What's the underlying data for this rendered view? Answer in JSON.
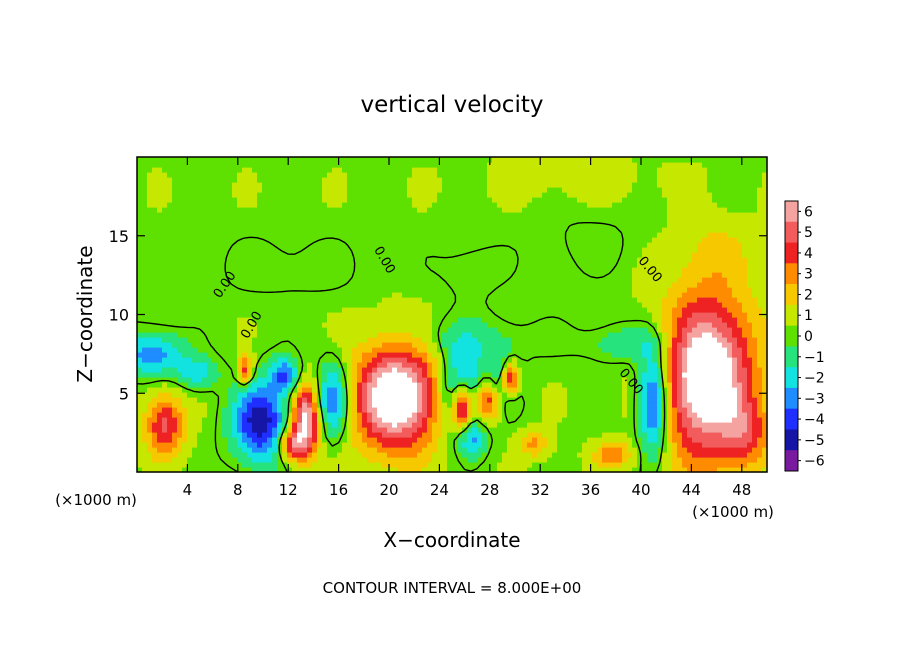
{
  "chart_data": {
    "type": "heatmap",
    "title": "vertical velocity",
    "xlabel": "X−coordinate",
    "ylabel": "Z−coordinate",
    "x_unit_left": "(×1000 m)",
    "x_unit_right": "(×1000 m)",
    "footer": "CONTOUR INTERVAL = 8.000E+00",
    "xlim": [
      0,
      50
    ],
    "ylim": [
      0,
      20
    ],
    "x_ticks": [
      4,
      8,
      12,
      16,
      20,
      24,
      28,
      32,
      36,
      40,
      44,
      48
    ],
    "y_ticks": [
      5,
      10,
      15
    ],
    "contour_labels": [
      "0.00",
      "0.00",
      "0.00",
      "0.00",
      "0.00"
    ],
    "colorbar": {
      "levels": [
        6,
        5,
        4,
        3,
        2,
        1,
        0,
        -1,
        -2,
        -3,
        -4,
        -5,
        -6
      ],
      "labels": [
        "6",
        "5",
        "4",
        "3",
        "2",
        "1",
        "0",
        "−1",
        "−2",
        "−3",
        "−4",
        "−5",
        "−6"
      ],
      "colors": [
        "#f4a3a0",
        "#f25c5c",
        "#ee2222",
        "#ff8c00",
        "#f5c800",
        "#c6e800",
        "#5ee000",
        "#26e37e",
        "#12e2e0",
        "#1f8cff",
        "#1e2fff",
        "#1515a6",
        "#7a1a9e"
      ],
      "above_max_color": "#ffffff"
    },
    "features": [
      {
        "x": 2.2,
        "z": 3.0,
        "rx": 1.5,
        "rz": 2.0,
        "w": 4.5
      },
      {
        "x": 1.2,
        "z": 7.5,
        "rx": 2.5,
        "rz": 1.4,
        "w": -3.5
      },
      {
        "x": 4.8,
        "z": 6.3,
        "rx": 1.6,
        "rz": 1.0,
        "w": -2.5
      },
      {
        "x": 8.6,
        "z": 6.5,
        "rx": 0.6,
        "rz": 1.0,
        "w": 4.0
      },
      {
        "x": 9.8,
        "z": 3.2,
        "rx": 2.2,
        "rz": 2.5,
        "w": -5.5
      },
      {
        "x": 11.8,
        "z": 6.2,
        "rx": 1.2,
        "rz": 1.1,
        "w": -3.8
      },
      {
        "x": 13.4,
        "z": 3.3,
        "rx": 1.1,
        "rz": 2.3,
        "w": 6.8
      },
      {
        "x": 12.2,
        "z": 1.8,
        "rx": 1.0,
        "rz": 1.0,
        "w": 4.5
      },
      {
        "x": 15.6,
        "z": 4.6,
        "rx": 1.4,
        "rz": 2.4,
        "w": -4.3
      },
      {
        "x": 20.6,
        "z": 4.8,
        "rx": 3.5,
        "rz": 3.4,
        "w": 7.8
      },
      {
        "x": 25.8,
        "z": 5.0,
        "rx": 1.8,
        "rz": 2.6,
        "w": -4.8
      },
      {
        "x": 25.8,
        "z": 4.2,
        "rx": 0.8,
        "rz": 1.5,
        "w": 7.0
      },
      {
        "x": 27.8,
        "z": 4.6,
        "rx": 1.2,
        "rz": 1.3,
        "w": 5.0
      },
      {
        "x": 29.2,
        "z": 5.6,
        "rx": 1.1,
        "rz": 1.7,
        "w": -3.5
      },
      {
        "x": 29.6,
        "z": 5.9,
        "rx": 0.7,
        "rz": 1.1,
        "w": 6.8
      },
      {
        "x": 26.6,
        "z": 2.0,
        "rx": 1.0,
        "rz": 1.0,
        "w": -2.5
      },
      {
        "x": 31.5,
        "z": 1.8,
        "rx": 1.2,
        "rz": 0.8,
        "w": 2.5
      },
      {
        "x": 37.8,
        "z": 1.1,
        "rx": 1.5,
        "rz": 0.8,
        "w": 3.0
      },
      {
        "x": 41.0,
        "z": 4.6,
        "rx": 1.2,
        "rz": 3.4,
        "w": -5.5
      },
      {
        "x": 45.3,
        "z": 6.0,
        "rx": 3.6,
        "rz": 5.2,
        "w": 8.0
      },
      {
        "x": 48.5,
        "z": 2.4,
        "rx": 1.8,
        "rz": 2.0,
        "w": 2.5
      },
      {
        "x": 39.0,
        "z": 8.2,
        "rx": 3.5,
        "rz": 1.2,
        "w": -1.6
      },
      {
        "x": 26.0,
        "z": 8.4,
        "rx": 6.0,
        "rz": 1.5,
        "w": -1.3
      },
      {
        "x": 46.0,
        "z": 14.2,
        "rx": 3.0,
        "rz": 2.0,
        "w": 1.0
      },
      {
        "x": 12.0,
        "z": 13.0,
        "rx": 6.0,
        "rz": 2.0,
        "w": -0.7
      },
      {
        "x": 36.0,
        "z": 14.5,
        "rx": 4.0,
        "rz": 2.0,
        "w": -0.6
      },
      {
        "x": 26.5,
        "z": 12.8,
        "rx": 2.5,
        "rz": 2.0,
        "w": -0.8
      },
      {
        "x": 35.0,
        "z": 18.6,
        "rx": 8.0,
        "rz": 1.5,
        "w": 0.5
      }
    ],
    "grid": false
  }
}
